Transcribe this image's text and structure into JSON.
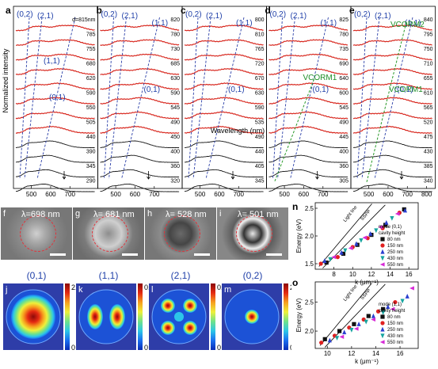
{
  "figure": {
    "spectra": {
      "ylabel": "Normalized intensity",
      "xlabel": "Wavelength (nm)",
      "panels": [
        {
          "letter": "a",
          "xticks": [
            "500",
            "600",
            "700"
          ],
          "diameters": [
            "d=815nm",
            "785",
            "755",
            "680",
            "620",
            "590",
            "550",
            "505",
            "440",
            "390",
            "345",
            "290"
          ],
          "mode_labels": [
            "(0,2)",
            "(2,1)",
            "(1,1)",
            "(0,1)"
          ]
        },
        {
          "letter": "b",
          "xticks": [
            "500",
            "600",
            "700"
          ],
          "diameters": [
            "820",
            "780",
            "730",
            "685",
            "630",
            "590",
            "545",
            "490",
            "450",
            "400",
            "360",
            "320"
          ],
          "mode_labels": [
            "(0,2)",
            "(2,1)",
            "(1,1)",
            "(0,1)"
          ]
        },
        {
          "letter": "c",
          "xticks": [
            "500",
            "600",
            "700"
          ],
          "diameters": [
            "800",
            "810",
            "765",
            "720",
            "670",
            "630",
            "590",
            "535",
            "490",
            "440",
            "405",
            "345"
          ],
          "mode_labels": [
            "(0,2)",
            "(2,1)",
            "(1,1)",
            "(0,1)"
          ]
        },
        {
          "letter": "d",
          "xticks": [
            "500",
            "600",
            "700"
          ],
          "diameters": [
            "825",
            "780",
            "735",
            "690",
            "640",
            "600",
            "545",
            "490",
            "445",
            "400",
            "360",
            "305"
          ],
          "mode_labels": [
            "(0,2)",
            "(2,1)",
            "(1,1)",
            "(0,1)"
          ],
          "extra_label": "VCORM1"
        },
        {
          "letter": "e",
          "xticks": [
            "500",
            "600",
            "700",
            "800"
          ],
          "diameters": [
            "840",
            "795",
            "750",
            "710",
            "655",
            "610",
            "565",
            "520",
            "475",
            "430",
            "385",
            "340"
          ],
          "mode_labels": [
            "(0,2)",
            "(2,1)",
            "(1,1)",
            "(0,1)"
          ],
          "extra_labels": [
            "VCORM2",
            "VCORM1"
          ]
        }
      ]
    },
    "images": [
      {
        "letter": "f",
        "wavelength": "λ=698 nm",
        "mode": "(0,1)"
      },
      {
        "letter": "g",
        "wavelength": "λ= 681 nm",
        "mode": "(1,1)"
      },
      {
        "letter": "h",
        "wavelength": "λ= 528 nm",
        "mode": "(2,1)"
      },
      {
        "letter": "i",
        "wavelength": "λ= 501 nm",
        "mode": "(0,2)"
      }
    ],
    "simulations": [
      {
        "letter": "j",
        "cbar_max": "2.8",
        "cbar_min": "0"
      },
      {
        "letter": "k",
        "cbar_max": "0.09",
        "cbar_min": "0"
      },
      {
        "letter": "l",
        "cbar_max": "0.3",
        "cbar_min": "0"
      },
      {
        "letter": "m",
        "cbar_max": "2.5",
        "cbar_min": "0"
      }
    ]
  },
  "chart_data": [
    {
      "type": "scatter",
      "panel": "n",
      "xlabel": "k (μm⁻¹)",
      "ylabel": "Energy (eV)",
      "xlim": [
        6,
        17
      ],
      "ylim": [
        1.4,
        2.6
      ],
      "xticks": [
        8,
        10,
        12,
        14,
        16
      ],
      "yticks": [
        1.5,
        2.0,
        2.5
      ],
      "line_labels": [
        "Light line",
        "SSPP"
      ],
      "legend_title": [
        "mode (0,1)",
        "cavity height"
      ],
      "legend_position": "right",
      "series": [
        {
          "name": "80 nm",
          "color": "#111111",
          "marker": "square",
          "x": [
            7.2,
            9.0,
            10.5,
            12.0,
            13.5,
            15.5
          ],
          "y": [
            1.52,
            1.68,
            1.84,
            2.02,
            2.2,
            2.48
          ]
        },
        {
          "name": "150 nm",
          "color": "#e02020",
          "marker": "circle",
          "x": [
            6.6,
            8.4,
            10.0,
            11.6,
            13.2,
            15.0
          ],
          "y": [
            1.5,
            1.62,
            1.8,
            1.96,
            2.14,
            2.42
          ]
        },
        {
          "name": "250 nm",
          "color": "#2a3fd0",
          "marker": "triangle-up",
          "x": [
            7.0,
            8.8,
            10.4,
            11.9,
            13.6,
            15.6
          ],
          "y": [
            1.55,
            1.7,
            1.86,
            2.04,
            2.24,
            2.46
          ]
        },
        {
          "name": "430 nm",
          "color": "#16a5a0",
          "marker": "triangle-down",
          "x": [
            7.6,
            9.2,
            10.9,
            12.5,
            14.2
          ],
          "y": [
            1.58,
            1.74,
            1.92,
            2.1,
            2.32
          ]
        },
        {
          "name": "550 nm",
          "color": "#d62ad6",
          "marker": "triangle-left",
          "x": [
            8.0,
            9.8,
            11.3,
            13.0,
            14.8
          ],
          "y": [
            1.62,
            1.78,
            1.97,
            2.16,
            2.4
          ]
        }
      ]
    },
    {
      "type": "scatter",
      "panel": "o",
      "xlabel": "k (μm⁻¹)",
      "ylabel": "Energy (eV)",
      "xlim": [
        9,
        17.5
      ],
      "ylim": [
        1.7,
        2.85
      ],
      "xticks": [
        10,
        12,
        14,
        16
      ],
      "yticks": [
        2.0,
        2.5
      ],
      "line_labels": [
        "Light line",
        "SSPP"
      ],
      "legend_title": [
        "mode (1,1)",
        "cavity height"
      ],
      "legend_position": "right",
      "series": [
        {
          "name": "80 nm",
          "color": "#111111",
          "marker": "square",
          "x": [
            9.8,
            11.0,
            12.2,
            13.4,
            14.6
          ],
          "y": [
            1.86,
            2.0,
            2.12,
            2.26,
            2.38
          ]
        },
        {
          "name": "150 nm",
          "color": "#e02020",
          "marker": "circle",
          "x": [
            9.5,
            10.6,
            11.8,
            13.0,
            14.2,
            15.6
          ],
          "y": [
            1.8,
            1.92,
            2.06,
            2.2,
            2.34,
            2.5
          ]
        },
        {
          "name": "250 nm",
          "color": "#2a3fd0",
          "marker": "triangle-up",
          "x": [
            10.2,
            11.4,
            12.6,
            13.8,
            15.0,
            16.6
          ],
          "y": [
            1.84,
            1.98,
            2.12,
            2.26,
            2.42,
            2.6
          ]
        },
        {
          "name": "430 nm",
          "color": "#16a5a0",
          "marker": "triangle-down",
          "x": [
            10.8,
            12.0,
            13.2,
            14.6,
            16.2
          ],
          "y": [
            1.88,
            2.02,
            2.16,
            2.32,
            2.52
          ]
        },
        {
          "name": "550 nm",
          "color": "#d62ad6",
          "marker": "triangle-left",
          "x": [
            11.2,
            12.4,
            13.8,
            15.4,
            17.0
          ],
          "y": [
            1.9,
            2.04,
            2.2,
            2.38,
            2.74
          ]
        }
      ]
    }
  ]
}
